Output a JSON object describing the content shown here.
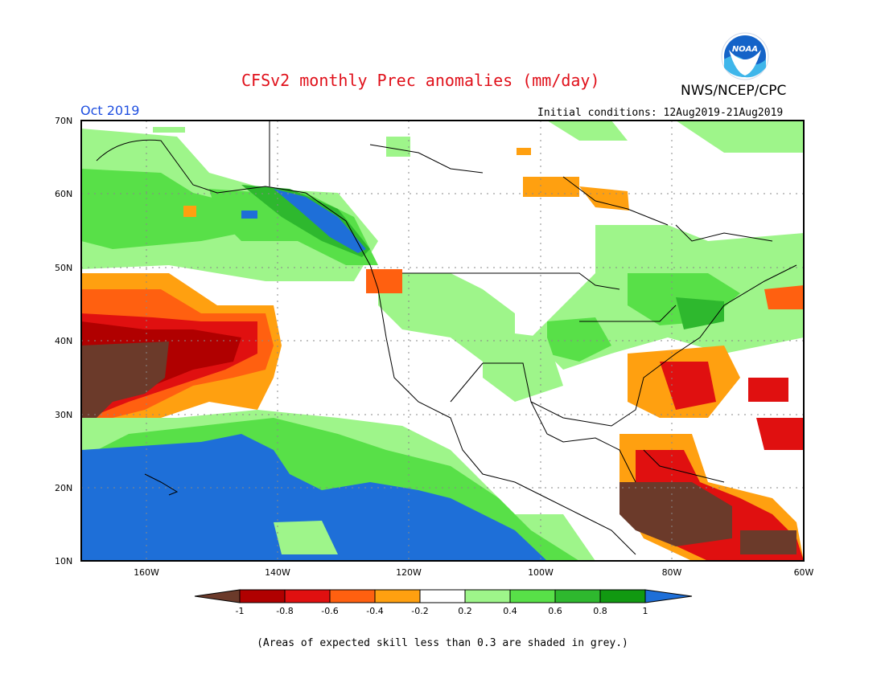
{
  "header": {
    "title": "CFSv2 monthly Prec anomalies (mm/day)",
    "agency": "NWS/NCEP/CPC",
    "logo_text": "NOAA",
    "month": "Oct 2019",
    "initial_conditions": "Initial conditions: 12Aug2019-21Aug2019"
  },
  "axes": {
    "lat_labels": [
      "70N",
      "60N",
      "50N",
      "40N",
      "30N",
      "20N",
      "10N"
    ],
    "lon_labels": [
      "160W",
      "140W",
      "120W",
      "100W",
      "80W",
      "60W"
    ]
  },
  "colorbar": {
    "labels": [
      "-1",
      "-0.8",
      "-0.6",
      "-0.4",
      "-0.2",
      "0.2",
      "0.4",
      "0.6",
      "0.8",
      "1"
    ],
    "colors": [
      "#6b3a2a",
      "#b00000",
      "#e01010",
      "#ff6010",
      "#ffa010",
      "#ffffff",
      "#9ef58a",
      "#58e048",
      "#2eb82e",
      "#119911",
      "#1e6fd8"
    ]
  },
  "footnote": "(Areas of expected skill less than 0.3 are shaded in grey.)",
  "colors": {
    "title": "#e0101a",
    "month": "#1f4fe0",
    "frame": "#000000"
  }
}
